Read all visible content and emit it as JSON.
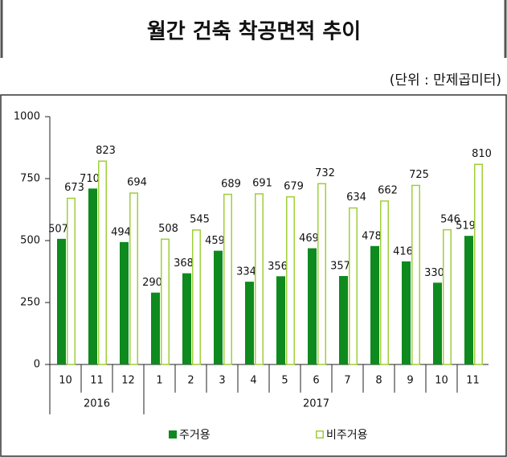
{
  "title": "월간 건축 착공면적 추이",
  "unit": "(단위 : 만제곱미터)",
  "chart_data": {
    "type": "bar",
    "categories": [
      "10",
      "11",
      "12",
      "1",
      "2",
      "3",
      "4",
      "5",
      "6",
      "7",
      "8",
      "9",
      "10",
      "11"
    ],
    "groups": [
      {
        "label": "2016",
        "span": 3
      },
      {
        "label": "2017",
        "span": 11
      }
    ],
    "series": [
      {
        "name": "주거용",
        "color": "#0e8a1e",
        "values": [
          507,
          710,
          494,
          290,
          368,
          459,
          334,
          356,
          469,
          357,
          478,
          416,
          330,
          519
        ]
      },
      {
        "name": "비주거용",
        "color": "#9fcf3a",
        "values": [
          673,
          823,
          694,
          508,
          545,
          689,
          691,
          679,
          732,
          634,
          662,
          725,
          546,
          810
        ]
      }
    ],
    "ylim": [
      0,
      1000
    ],
    "yticks": [
      0,
      250,
      500,
      750,
      1000
    ]
  }
}
